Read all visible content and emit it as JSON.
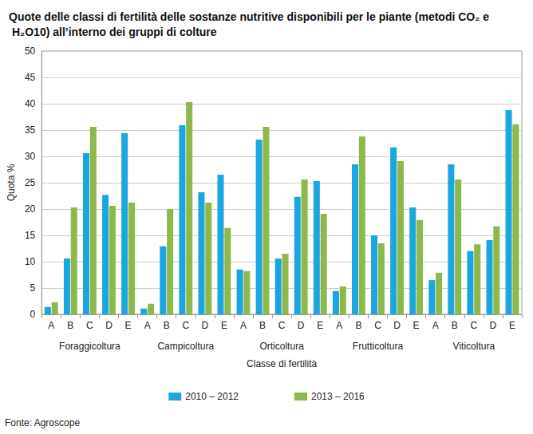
{
  "chart_data": {
    "type": "bar",
    "title": "Quote delle classi di fertilità delle sostanze nutritive disponibili per le piante (metodi CO₂ e H₂O10) all’interno dei gruppi di colture",
    "ylabel": "Quota %",
    "xlabel": "Classe di fertilità",
    "source": "Fonte: Agroscope",
    "categories": [
      "A",
      "B",
      "C",
      "D",
      "E",
      "A",
      "B",
      "C",
      "D",
      "E",
      "A",
      "B",
      "C",
      "D",
      "E",
      "A",
      "B",
      "C",
      "D",
      "E",
      "A",
      "B",
      "C",
      "D",
      "E"
    ],
    "groups": [
      "Foraggicoltura",
      "Campicoltura",
      "Orticoltura",
      "Frutticoltura",
      "Viticoltura"
    ],
    "series": [
      {
        "name": "2010 – 2012",
        "color": "#1ba6e0",
        "values": [
          1.4,
          10.6,
          30.6,
          22.7,
          34.4,
          1.1,
          12.9,
          35.9,
          23.2,
          26.5,
          8.5,
          33.2,
          10.6,
          22.3,
          25.3,
          4.4,
          28.5,
          15.0,
          31.7,
          20.3,
          6.5,
          28.5,
          12.0,
          14.1,
          38.8
        ]
      },
      {
        "name": "2013 – 2016",
        "color": "#8db84a",
        "values": [
          2.3,
          20.3,
          35.6,
          20.6,
          21.2,
          2.0,
          20.0,
          40.3,
          21.2,
          16.4,
          8.2,
          35.6,
          11.5,
          25.6,
          19.1,
          5.3,
          33.8,
          13.5,
          29.1,
          17.9,
          7.9,
          25.6,
          13.3,
          16.7,
          36.1
        ]
      }
    ],
    "ylim": [
      0,
      50
    ],
    "yticks": [
      0,
      5,
      10,
      15,
      20,
      25,
      30,
      35,
      40,
      45,
      50
    ],
    "grid": true,
    "legend": "bottom"
  }
}
